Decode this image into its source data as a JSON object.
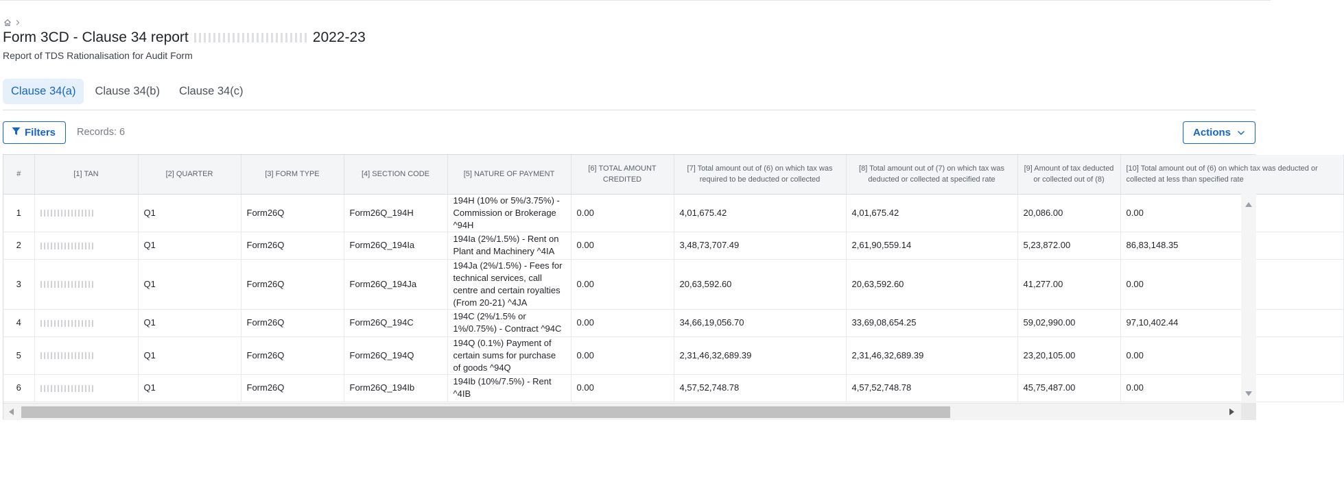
{
  "page": {
    "title_prefix": "Form 3CD - Clause 34 report",
    "title_suffix": "2022-23",
    "subtitle": "Report of TDS Rationalisation for Audit Form"
  },
  "breadcrumb": {
    "home_icon": "home-icon",
    "separator_icon": "chevron-right-icon"
  },
  "tabs": [
    {
      "label": "Clause 34(a)",
      "active": true
    },
    {
      "label": "Clause 34(b)",
      "active": false
    },
    {
      "label": "Clause 34(c)",
      "active": false
    }
  ],
  "toolbar": {
    "filters_label": "Filters",
    "records_label": "Records: 6",
    "actions_label": "Actions"
  },
  "colors": {
    "accent": "#1665c0",
    "active_tab_bg": "#e6f0fb",
    "header_bg": "#f4f5f7"
  },
  "table": {
    "columns": [
      "#",
      "[1] TAN",
      "[2] QUARTER",
      "[3] FORM TYPE",
      "[4] SECTION CODE",
      "[5] NATURE OF PAYMENT",
      "[6] TOTAL AMOUNT CREDITED",
      "[7] Total amount out of (6) on which tax was required to be deducted or collected",
      "[8] Total amount out of (7) on which tax was deducted or collected at specified rate",
      "[9] Amount of tax deducted or collected out of (8)",
      "[10] Total amount out of (6) on which tax was deducted or collected at less than specified rate"
    ],
    "rows": [
      {
        "n": "1",
        "quarter": "Q1",
        "form": "Form26Q",
        "section": "Form26Q_194H",
        "nature": "194H (10% or 5%/3.75%) - Commission or Brokerage ^94H",
        "c6": "0.00",
        "c7": "4,01,675.42",
        "c8": "4,01,675.42",
        "c9": "20,086.00",
        "c10": "0.00"
      },
      {
        "n": "2",
        "quarter": "Q1",
        "form": "Form26Q",
        "section": "Form26Q_194Ia",
        "nature": "194Ia (2%/1.5%) - Rent on Plant and Machinery ^4IA",
        "c6": "0.00",
        "c7": "3,48,73,707.49",
        "c8": "2,61,90,559.14",
        "c9": "5,23,872.00",
        "c10": "86,83,148.35"
      },
      {
        "n": "3",
        "quarter": "Q1",
        "form": "Form26Q",
        "section": "Form26Q_194Ja",
        "nature": "194Ja (2%/1.5%) - Fees for technical services, call centre and certain royalties (From 20-21) ^4JA",
        "c6": "0.00",
        "c7": "20,63,592.60",
        "c8": "20,63,592.60",
        "c9": "41,277.00",
        "c10": "0.00"
      },
      {
        "n": "4",
        "quarter": "Q1",
        "form": "Form26Q",
        "section": "Form26Q_194C",
        "nature": "194C (2%/1.5% or 1%/0.75%) - Contract ^94C",
        "c6": "0.00",
        "c7": "34,66,19,056.70",
        "c8": "33,69,08,654.25",
        "c9": "59,02,990.00",
        "c10": "97,10,402.44"
      },
      {
        "n": "5",
        "quarter": "Q1",
        "form": "Form26Q",
        "section": "Form26Q_194Q",
        "nature": "194Q (0.1%) Payment of certain sums for purchase of goods ^94Q",
        "c6": "0.00",
        "c7": "2,31,46,32,689.39",
        "c8": "2,31,46,32,689.39",
        "c9": "23,20,105.00",
        "c10": "0.00"
      },
      {
        "n": "6",
        "quarter": "Q1",
        "form": "Form26Q",
        "section": "Form26Q_194Ib",
        "nature": "194Ib (10%/7.5%) - Rent ^4IB",
        "c6": "0.00",
        "c7": "4,57,52,748.78",
        "c8": "4,57,52,748.78",
        "c9": "45,75,487.00",
        "c10": "0.00"
      }
    ]
  }
}
